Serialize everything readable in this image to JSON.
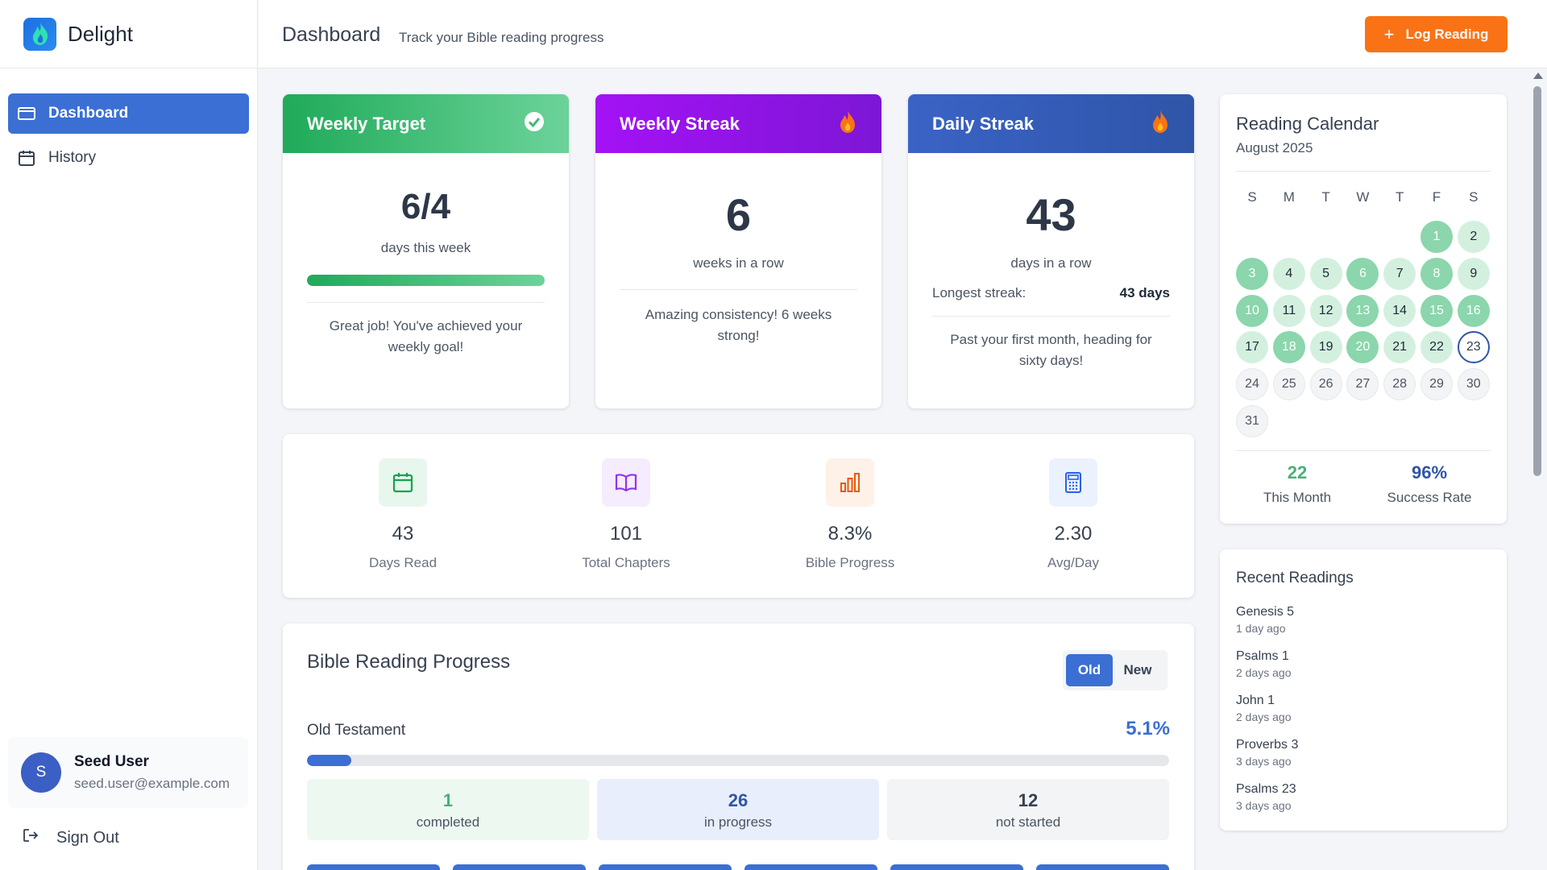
{
  "brand": {
    "name": "Delight"
  },
  "sidebar": {
    "items": [
      {
        "label": "Dashboard",
        "icon": "folder-icon"
      },
      {
        "label": "History",
        "icon": "calendar-icon"
      }
    ],
    "user": {
      "initial": "S",
      "name": "Seed User",
      "email": "seed.user@example.com"
    },
    "signout_label": "Sign Out"
  },
  "header": {
    "title": "Dashboard",
    "subtitle": "Track your Bible reading progress",
    "log_button": "Log Reading",
    "log_button_icon": "plus-icon",
    "accent": "#f97316"
  },
  "cards": {
    "weekly_target": {
      "title": "Weekly Target",
      "value": "6/4",
      "label": "days this week",
      "progress": 1.0,
      "message": "Great job! You've achieved your weekly goal!",
      "color": "#1faa59"
    },
    "weekly_streak": {
      "title": "Weekly Streak",
      "value": "6",
      "label": "weeks in a row",
      "message": "Amazing consistency! 6 weeks strong!",
      "color": "#a412f5"
    },
    "daily_streak": {
      "title": "Daily Streak",
      "value": "43",
      "label": "days in a row",
      "longest_label": "Longest streak:",
      "longest_value": "43 days",
      "message": "Past your first month, heading for sixty days!",
      "color": "#3a63c6"
    }
  },
  "metrics": [
    {
      "value": "43",
      "label": "Days Read",
      "icon": "calendar-check-icon",
      "color": "#16a34a",
      "bg": "#e8f7ee"
    },
    {
      "value": "101",
      "label": "Total Chapters",
      "icon": "book-open-icon",
      "color": "#9333ea",
      "bg": "#f5ecfd"
    },
    {
      "value": "8.3%",
      "label": "Bible Progress",
      "icon": "bar-chart-icon",
      "color": "#ea580c",
      "bg": "#fdf1e8"
    },
    {
      "value": "2.30",
      "label": "Avg/Day",
      "icon": "calculator-icon",
      "color": "#2563eb",
      "bg": "#ebf1fd"
    }
  ],
  "bible_progress": {
    "title": "Bible Reading Progress",
    "toggle": {
      "on": "Old",
      "off": "New"
    },
    "testament_label": "Old Testament",
    "percent_label": "5.1%",
    "percent": 5.1,
    "status": [
      {
        "value": "1",
        "label": "completed",
        "bg": "#edf8f1",
        "color": "#4caf7a"
      },
      {
        "value": "26",
        "label": "in progress",
        "bg": "#e8eefb",
        "color": "#2f55a8"
      },
      {
        "value": "12",
        "label": "not started",
        "bg": "#f3f4f6",
        "color": "#374151"
      }
    ]
  },
  "calendar": {
    "title": "Reading Calendar",
    "month": "August 2025",
    "weekdays": [
      "S",
      "M",
      "T",
      "W",
      "T",
      "F",
      "S"
    ],
    "first_weekday": 5,
    "days_in_month": 31,
    "read_days": [
      1,
      3,
      6,
      8,
      10,
      13,
      15,
      16,
      18,
      20
    ],
    "light_days": [
      2,
      4,
      5,
      7,
      9,
      11,
      12,
      14,
      17,
      19,
      21,
      22
    ],
    "today": 23,
    "stats": [
      {
        "value": "22",
        "label": "This Month",
        "color": "#4caf7a"
      },
      {
        "value": "96%",
        "label": "Success Rate",
        "color": "#2f55a8"
      }
    ]
  },
  "recent": {
    "title": "Recent Readings",
    "items": [
      {
        "name": "Genesis 5",
        "time": "1 day ago"
      },
      {
        "name": "Psalms 1",
        "time": "2 days ago"
      },
      {
        "name": "John 1",
        "time": "2 days ago"
      },
      {
        "name": "Proverbs 3",
        "time": "3 days ago"
      },
      {
        "name": "Psalms 23",
        "time": "3 days ago"
      }
    ]
  }
}
